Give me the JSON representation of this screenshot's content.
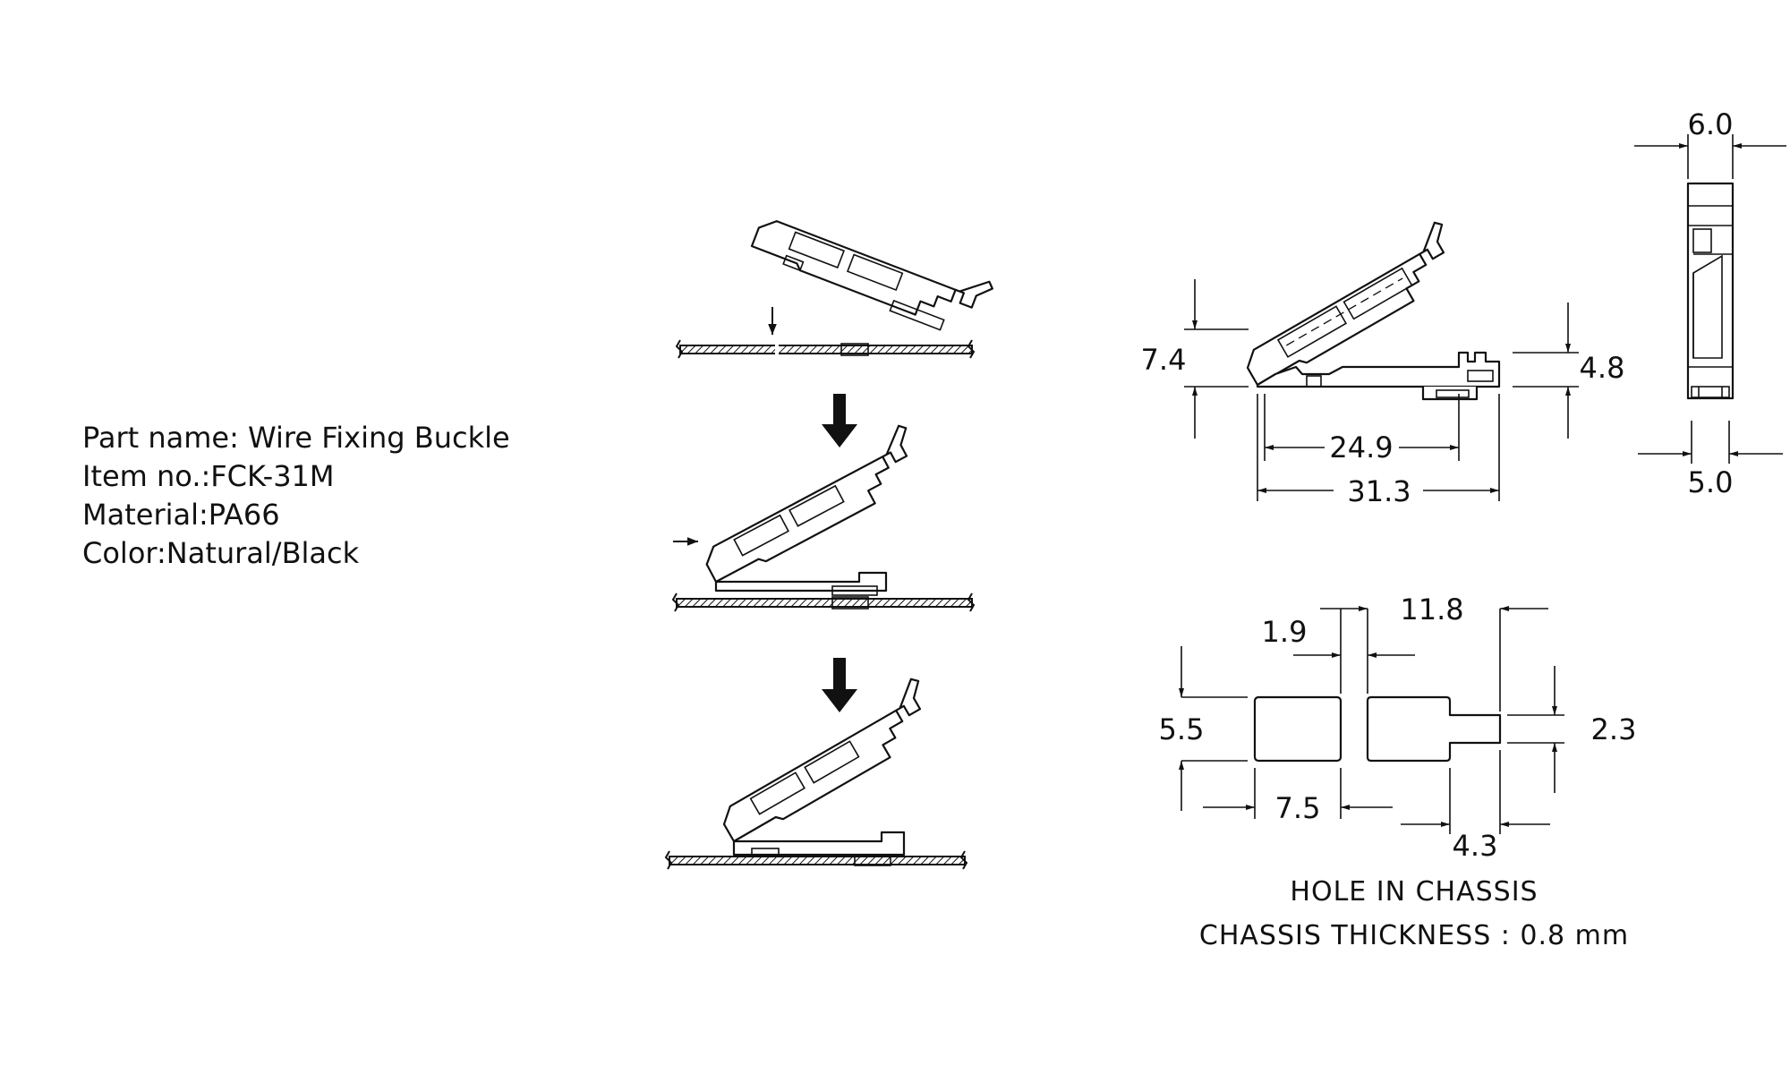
{
  "part_info": {
    "part_name": "Part name: Wire Fixing Buckle",
    "item_no": "Item no.:FCK-31M",
    "material": "Material:PA66",
    "color": "Color:Natural/Black"
  },
  "side_view": {
    "height": "7.4",
    "foot_height": "4.8",
    "inner_length": "24.9",
    "total_length": "31.3"
  },
  "end_view": {
    "top_width": "6.0",
    "bottom_width": "5.0"
  },
  "hole": {
    "gap": "1.9",
    "slot_length": "11.8",
    "height": "5.5",
    "tab_height": "2.3",
    "square_width": "7.5",
    "tab_length": "4.3",
    "title": "HOLE IN CHASSIS",
    "thickness": "CHASSIS THICKNESS : 0.8 mm"
  }
}
